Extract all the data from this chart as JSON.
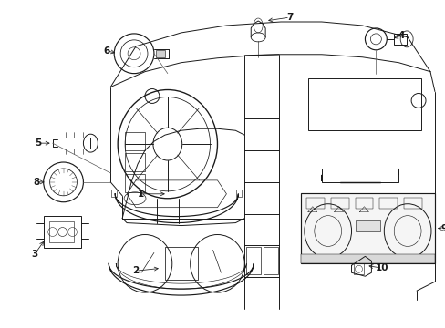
{
  "bg_color": "#ffffff",
  "line_color": "#1a1a1a",
  "lw": 0.7,
  "fig_width": 4.89,
  "fig_height": 3.6,
  "dpi": 100
}
